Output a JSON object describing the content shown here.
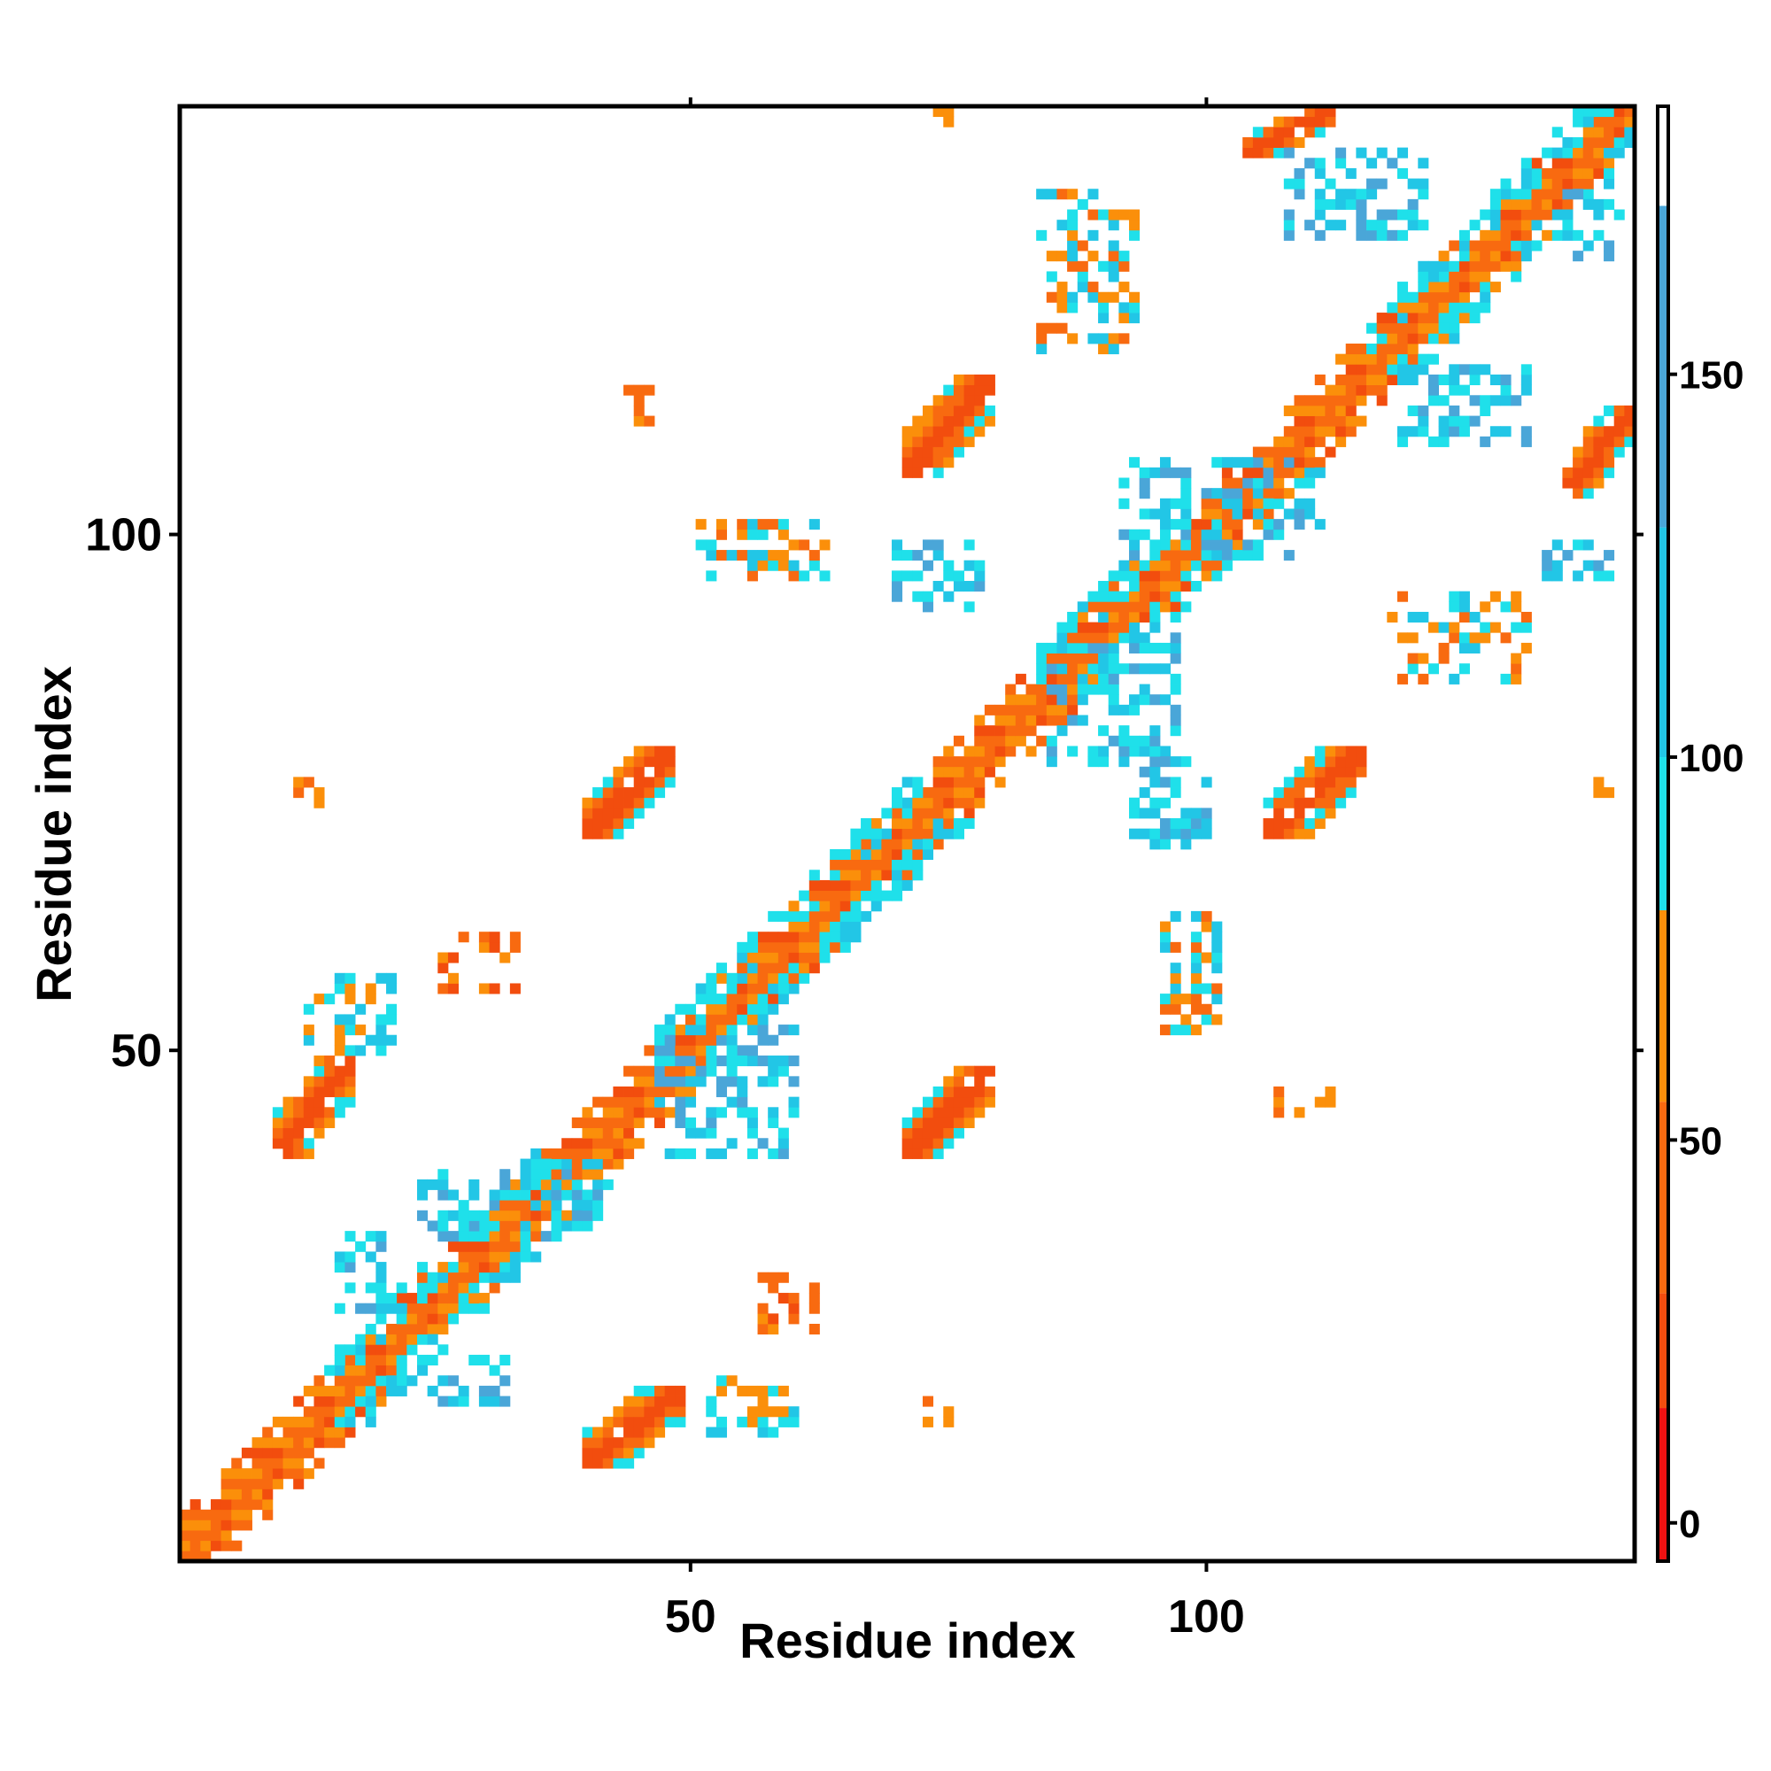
{
  "chart_data": {
    "type": "heatmap",
    "title": "",
    "xlabel": "Residue index",
    "ylabel": "Residue index",
    "xlim": [
      0.5,
      141.5
    ],
    "ylim": [
      0.5,
      141.5
    ],
    "x_ticks": [
      50,
      100
    ],
    "y_ticks": [
      50,
      100
    ],
    "grid": false,
    "colorbar": {
      "range": [
        -5,
        185
      ],
      "ticks": [
        0,
        50,
        100,
        150
      ],
      "bands": [
        {
          "from": -5,
          "to": 15,
          "color": "#ee1111"
        },
        {
          "from": 15,
          "to": 30,
          "color": "#f24d0e"
        },
        {
          "from": 30,
          "to": 55,
          "color": "#f86a10"
        },
        {
          "from": 55,
          "to": 80,
          "color": "#fb8f0a"
        },
        {
          "from": 80,
          "to": 100,
          "color": "#1fe0ea"
        },
        {
          "from": 100,
          "to": 130,
          "color": "#22c6e6"
        },
        {
          "from": 130,
          "to": 172,
          "color": "#4aa6d8"
        },
        {
          "from": 172,
          "to": 185,
          "color": "#ffffff"
        }
      ]
    },
    "features": [
      {
        "kind": "band",
        "i1": 1,
        "i2": 141,
        "offsets": [
          -4,
          4
        ],
        "values": [
          40,
          15,
          65,
          30,
          55
        ],
        "with_diag": true
      },
      {
        "kind": "helix",
        "i1": 14,
        "i2": 22,
        "value": 90
      },
      {
        "kind": "helix",
        "i1": 24,
        "i2": 37,
        "value": 90
      },
      {
        "kind": "helix",
        "i1": 48,
        "i2": 62,
        "value": 90
      },
      {
        "kind": "helix",
        "i1": 63,
        "i2": 72,
        "value": 90
      },
      {
        "kind": "helix",
        "i1": 84,
        "i2": 100,
        "value": 90
      },
      {
        "kind": "helix",
        "i1": 116,
        "i2": 128,
        "value": 90
      },
      {
        "kind": "helix",
        "i1": 128,
        "i2": 141,
        "value": 90
      },
      {
        "kind": "blob",
        "x1": 40,
        "x2": 49,
        "y1": 10,
        "y2": 17,
        "values": [
          15,
          40,
          60,
          90
        ]
      },
      {
        "kind": "blob",
        "x1": 10,
        "x2": 17,
        "y1": 40,
        "y2": 49,
        "values": [
          15,
          40,
          60,
          90
        ]
      },
      {
        "kind": "blob",
        "x1": 71,
        "x2": 79,
        "y1": 40,
        "y2": 48,
        "values": [
          15,
          40,
          60,
          90
        ]
      },
      {
        "kind": "blob",
        "x1": 40,
        "x2": 48,
        "y1": 71,
        "y2": 79,
        "values": [
          15,
          40,
          60,
          90
        ]
      },
      {
        "kind": "blob",
        "x1": 106,
        "x2": 115,
        "y1": 71,
        "y2": 79,
        "values": [
          15,
          40,
          60,
          90
        ]
      },
      {
        "kind": "blob",
        "x1": 71,
        "x2": 79,
        "y1": 106,
        "y2": 115,
        "values": [
          15,
          40,
          60,
          90
        ]
      },
      {
        "kind": "blob",
        "x1": 104,
        "x2": 112,
        "y1": 137,
        "y2": 141,
        "values": [
          15,
          40,
          60,
          90
        ]
      },
      {
        "kind": "blob",
        "x1": 135,
        "x2": 141,
        "y1": 104,
        "y2": 112,
        "values": [
          15,
          40,
          60,
          90
        ]
      },
      {
        "kind": "patch",
        "x1": 51,
        "x2": 63,
        "y1": 96,
        "y2": 101,
        "values": [
          40,
          60,
          90,
          120
        ]
      },
      {
        "kind": "patch",
        "x1": 118,
        "x2": 131,
        "y1": 86,
        "y2": 94,
        "values": [
          40,
          60,
          90,
          120
        ]
      },
      {
        "kind": "patch",
        "x1": 96,
        "x2": 101,
        "y1": 52,
        "y2": 63,
        "values": [
          40,
          60,
          90,
          120
        ]
      },
      {
        "kind": "patch",
        "x1": 84,
        "x2": 93,
        "y1": 118,
        "y2": 133,
        "values": [
          40,
          60,
          90,
          120
        ]
      },
      {
        "kind": "patch",
        "x1": 52,
        "x2": 60,
        "y1": 13,
        "y2": 18,
        "values": [
          60,
          90,
          120
        ]
      },
      {
        "kind": "patch",
        "x1": 13,
        "x2": 21,
        "y1": 50,
        "y2": 57,
        "values": [
          60,
          90,
          120
        ]
      },
      {
        "kind": "patch",
        "x1": 70,
        "x2": 78,
        "y1": 93,
        "y2": 99,
        "values": [
          90,
          120,
          150
        ]
      },
      {
        "kind": "patch",
        "x1": 93,
        "x2": 100,
        "y1": 70,
        "y2": 79,
        "values": [
          90,
          120,
          150
        ]
      },
      {
        "kind": "patch",
        "x1": 92,
        "x2": 111,
        "y1": 98,
        "y2": 107,
        "values": [
          90,
          120,
          150
        ]
      },
      {
        "kind": "patch",
        "x1": 24,
        "x2": 41,
        "y1": 32,
        "y2": 39,
        "values": [
          90,
          120,
          150
        ]
      },
      {
        "kind": "patch",
        "x1": 119,
        "x2": 131,
        "y1": 109,
        "y2": 116,
        "values": [
          90,
          120,
          150
        ]
      },
      {
        "kind": "patch",
        "x1": 108,
        "x2": 121,
        "y1": 129,
        "y2": 137,
        "values": [
          90,
          120,
          150
        ]
      },
      {
        "kind": "patch",
        "x1": 25,
        "x2": 32,
        "y1": 16,
        "y2": 20,
        "values": [
          90,
          120,
          150
        ]
      },
      {
        "kind": "patch",
        "x1": 16,
        "x2": 20,
        "y1": 25,
        "y2": 32,
        "values": [
          90,
          120,
          150
        ]
      },
      {
        "kind": "patch",
        "x1": 47,
        "x2": 60,
        "y1": 40,
        "y2": 52,
        "values": [
          90,
          120,
          150
        ]
      },
      {
        "kind": "patch",
        "x1": 85,
        "x2": 97,
        "y1": 78,
        "y2": 90,
        "values": [
          90,
          120,
          150
        ]
      },
      {
        "kind": "patch",
        "x1": 57,
        "x2": 62,
        "y1": 23,
        "y2": 28,
        "values": [
          40,
          60,
          15
        ]
      },
      {
        "kind": "patch",
        "x1": 26,
        "x2": 33,
        "y1": 56,
        "y2": 61,
        "values": [
          40,
          60,
          15
        ]
      },
      {
        "kind": "patch",
        "x1": 107,
        "x2": 112,
        "y1": 44,
        "y2": 46,
        "values": [
          60,
          40
        ]
      },
      {
        "kind": "patch",
        "x1": 73,
        "x2": 75,
        "y1": 14,
        "y2": 16,
        "values": [
          60,
          40
        ]
      },
      {
        "kind": "patch",
        "x1": 44,
        "x2": 46,
        "y1": 111,
        "y2": 114,
        "values": [
          60,
          40
        ]
      },
      {
        "kind": "patch",
        "x1": 12,
        "x2": 14,
        "y1": 74,
        "y2": 76,
        "values": [
          60,
          40
        ]
      },
      {
        "kind": "patch",
        "x1": 138,
        "x2": 140,
        "y1": 75,
        "y2": 76,
        "values": [
          60
        ]
      },
      {
        "kind": "patch",
        "x1": 74,
        "x2": 76,
        "y1": 140,
        "y2": 141,
        "values": [
          60
        ]
      },
      {
        "kind": "patch",
        "x1": 135,
        "x2": 140,
        "y1": 127,
        "y2": 133,
        "values": [
          90,
          120,
          150
        ]
      },
      {
        "kind": "patch",
        "x1": 133,
        "x2": 139,
        "y1": 96,
        "y2": 99,
        "values": [
          90,
          120,
          150
        ]
      }
    ]
  }
}
